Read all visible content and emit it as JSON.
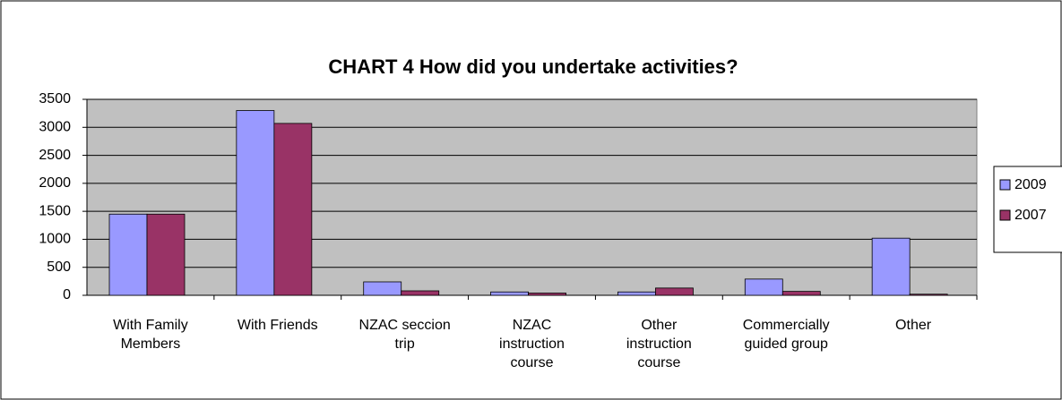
{
  "chart_data": {
    "type": "bar",
    "title": "CHART 4 How did you undertake activities?",
    "categories": [
      "With Family Members",
      "With Friends",
      "NZAC seccion trip",
      "NZAC instruction course",
      "Other instruction course",
      "Commercially guided group",
      "Other"
    ],
    "series": [
      {
        "name": "2009",
        "color": "#9999ff",
        "values": [
          1450,
          3300,
          240,
          60,
          60,
          290,
          1020
        ]
      },
      {
        "name": "2007",
        "color": "#993366",
        "values": [
          1450,
          3070,
          80,
          40,
          130,
          70,
          20
        ]
      }
    ],
    "ylim": [
      0,
      3500
    ],
    "yticks": [
      0,
      500,
      1000,
      1500,
      2000,
      2500,
      3000,
      3500
    ],
    "grid": true,
    "legend": "right"
  }
}
